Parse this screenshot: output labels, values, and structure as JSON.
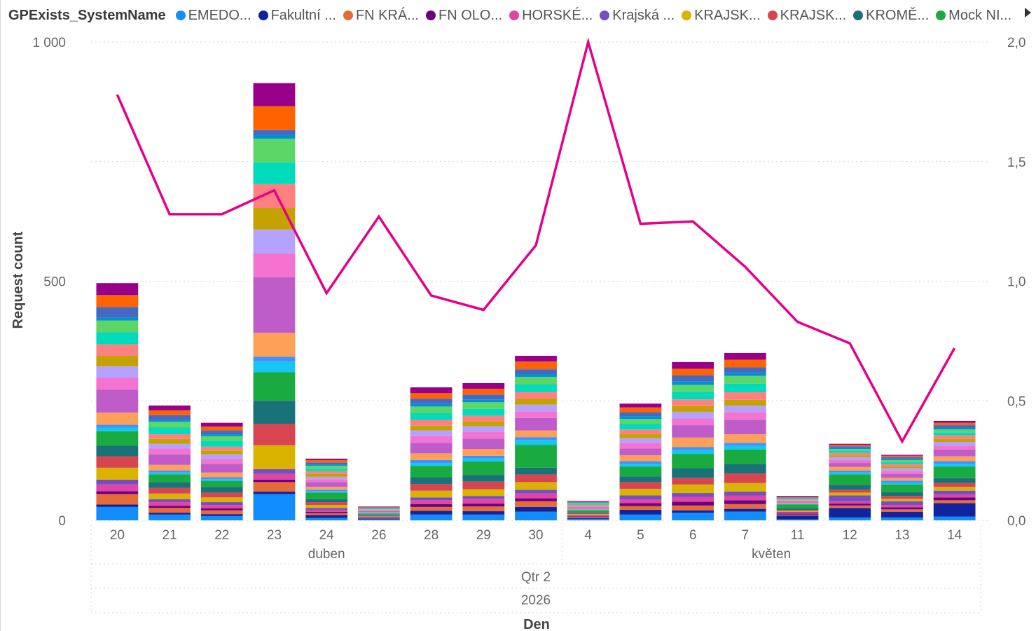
{
  "chart_data": {
    "type": "bar",
    "legend": {
      "title": "GPExists_SystemName",
      "entries": [
        {
          "name": "EMEDO...",
          "color": "#118dff"
        },
        {
          "name": "Fakultní ...",
          "color": "#12239e"
        },
        {
          "name": "FN KRÁ...",
          "color": "#e66c37"
        },
        {
          "name": "FN OLO...",
          "color": "#6b007b"
        },
        {
          "name": "HORSKÉ...",
          "color": "#e044a7"
        },
        {
          "name": "Krajská ...",
          "color": "#744ec2"
        },
        {
          "name": "KRAJSK...",
          "color": "#d9b300"
        },
        {
          "name": "KRAJSK...",
          "color": "#d64550"
        },
        {
          "name": "KROMĚ...",
          "color": "#197278"
        },
        {
          "name": "Mock NI...",
          "color": "#1aab40"
        }
      ]
    },
    "segment_colors": [
      "#118dff",
      "#12239e",
      "#e66c37",
      "#6b007b",
      "#e044a7",
      "#744ec2",
      "#d9b300",
      "#d64550",
      "#197278",
      "#1aab40",
      "#15c6f4",
      "#4092ff",
      "#ffa058",
      "#be5dc9",
      "#f472d0",
      "#b5a1ff",
      "#c4a200",
      "#ff8080",
      "#00dbbc",
      "#5bd667",
      "#0091d5",
      "#4668c5",
      "#ff6300",
      "#99008a"
    ],
    "categories": [
      "20",
      "21",
      "22",
      "23",
      "24",
      "26",
      "28",
      "29",
      "30",
      "4",
      "5",
      "6",
      "7",
      "11",
      "12",
      "13",
      "14"
    ],
    "month_groups": [
      {
        "label": "duben",
        "from": 0,
        "to": 8
      },
      {
        "label": "květen",
        "from": 9,
        "to": 16
      }
    ],
    "quarter_label": "Qtr 2",
    "year_label": "2026",
    "xlabel": "Den",
    "ylabel": "Request count",
    "y_left": {
      "min": 0,
      "max": 1000,
      "ticks": [
        0,
        500,
        1000
      ],
      "tick_labels": [
        "0",
        "500",
        "1 000"
      ]
    },
    "y_right": {
      "min": 0,
      "max": 2,
      "ticks": [
        0,
        0.5,
        1,
        1.5,
        2
      ],
      "tick_labels": [
        "0,0",
        "0,5",
        "1,0",
        "1,5",
        "2,0"
      ]
    },
    "series": [
      {
        "name": "EMEDO...",
        "values": [
          28,
          12,
          9,
          55,
          5,
          2,
          12,
          12,
          18,
          3,
          12,
          16,
          18,
          2,
          6,
          6,
          8
        ]
      },
      {
        "name": "Fakultní ...",
        "values": [
          5,
          4,
          4,
          5,
          6,
          2,
          8,
          7,
          10,
          2,
          10,
          5,
          6,
          8,
          20,
          12,
          28
        ]
      },
      {
        "name": "FN KRÁ...",
        "values": [
          22,
          10,
          8,
          20,
          4,
          1,
          8,
          10,
          12,
          2,
          8,
          10,
          10,
          2,
          5,
          5,
          6
        ]
      },
      {
        "name": "FN OLO...",
        "values": [
          6,
          4,
          4,
          5,
          3,
          1,
          6,
          6,
          6,
          1,
          6,
          8,
          8,
          2,
          4,
          4,
          6
        ]
      },
      {
        "name": "HORSKÉ...",
        "values": [
          14,
          8,
          7,
          12,
          4,
          1,
          8,
          10,
          10,
          2,
          8,
          10,
          10,
          2,
          5,
          5,
          6
        ]
      },
      {
        "name": "Krajská ...",
        "values": [
          10,
          6,
          6,
          10,
          4,
          1,
          6,
          6,
          8,
          1,
          8,
          8,
          8,
          2,
          12,
          8,
          8
        ]
      },
      {
        "name": "KRAJSK...",
        "values": [
          25,
          12,
          10,
          50,
          6,
          1,
          14,
          14,
          16,
          2,
          14,
          18,
          18,
          2,
          6,
          5,
          8
        ]
      },
      {
        "name": "KRAJSK...",
        "values": [
          24,
          12,
          10,
          45,
          6,
          1,
          14,
          16,
          16,
          2,
          14,
          14,
          20,
          2,
          6,
          6,
          8
        ]
      },
      {
        "name": "KROMĚ...",
        "values": [
          22,
          12,
          12,
          48,
          6,
          2,
          14,
          14,
          14,
          2,
          12,
          20,
          20,
          3,
          10,
          8,
          10
        ]
      },
      {
        "name": "Mock NI...",
        "values": [
          30,
          16,
          12,
          60,
          14,
          2,
          24,
          28,
          48,
          4,
          20,
          30,
          30,
          8,
          22,
          16,
          24
        ]
      },
      {
        "name": "",
        "values": [
          8,
          4,
          4,
          22,
          3,
          1,
          6,
          6,
          10,
          1,
          6,
          8,
          8,
          1,
          4,
          4,
          6
        ]
      },
      {
        "name": "",
        "values": [
          6,
          4,
          4,
          10,
          3,
          1,
          6,
          6,
          6,
          1,
          6,
          6,
          6,
          1,
          4,
          4,
          6
        ]
      },
      {
        "name": "",
        "values": [
          25,
          12,
          10,
          50,
          6,
          1,
          14,
          14,
          14,
          2,
          12,
          20,
          18,
          2,
          8,
          6,
          10
        ]
      },
      {
        "name": "",
        "values": [
          48,
          22,
          18,
          116,
          10,
          2,
          22,
          22,
          26,
          2,
          14,
          26,
          30,
          2,
          8,
          8,
          14
        ]
      },
      {
        "name": "",
        "values": [
          25,
          12,
          10,
          50,
          6,
          1,
          14,
          14,
          14,
          2,
          12,
          14,
          16,
          2,
          6,
          6,
          8
        ]
      },
      {
        "name": "",
        "values": [
          24,
          10,
          10,
          50,
          5,
          1,
          12,
          12,
          14,
          1,
          10,
          14,
          14,
          1,
          6,
          6,
          8
        ]
      },
      {
        "name": "",
        "values": [
          22,
          10,
          8,
          45,
          6,
          1,
          10,
          10,
          12,
          1,
          8,
          12,
          12,
          1,
          4,
          4,
          6
        ]
      },
      {
        "name": "",
        "values": [
          24,
          10,
          8,
          50,
          6,
          1,
          12,
          12,
          14,
          2,
          10,
          14,
          16,
          1,
          5,
          5,
          8
        ]
      },
      {
        "name": "",
        "values": [
          25,
          14,
          12,
          45,
          5,
          1,
          14,
          14,
          16,
          2,
          12,
          16,
          18,
          1,
          4,
          4,
          6
        ]
      },
      {
        "name": "",
        "values": [
          25,
          12,
          10,
          50,
          6,
          1,
          14,
          14,
          16,
          2,
          10,
          14,
          16,
          1,
          4,
          4,
          6
        ]
      },
      {
        "name": "",
        "values": [
          6,
          4,
          4,
          8,
          3,
          1,
          6,
          6,
          6,
          1,
          6,
          8,
          6,
          1,
          3,
          3,
          4
        ]
      },
      {
        "name": "",
        "values": [
          22,
          10,
          8,
          10,
          4,
          1,
          10,
          10,
          10,
          1,
          8,
          12,
          12,
          1,
          3,
          3,
          5
        ]
      },
      {
        "name": "",
        "values": [
          25,
          10,
          8,
          50,
          5,
          1,
          12,
          12,
          16,
          1,
          10,
          14,
          16,
          1,
          3,
          3,
          5
        ]
      },
      {
        "name": "",
        "values": [
          25,
          10,
          8,
          48,
          3,
          1,
          12,
          12,
          12,
          1,
          8,
          14,
          14,
          2,
          2,
          2,
          4
        ]
      }
    ],
    "line_series": {
      "axis": "right",
      "color": "#e3008c",
      "values": [
        1.78,
        1.28,
        1.28,
        1.38,
        0.95,
        1.27,
        0.94,
        0.88,
        1.15,
        2.0,
        1.24,
        1.25,
        1.06,
        0.83,
        0.74,
        0.33,
        0.72
      ]
    }
  }
}
